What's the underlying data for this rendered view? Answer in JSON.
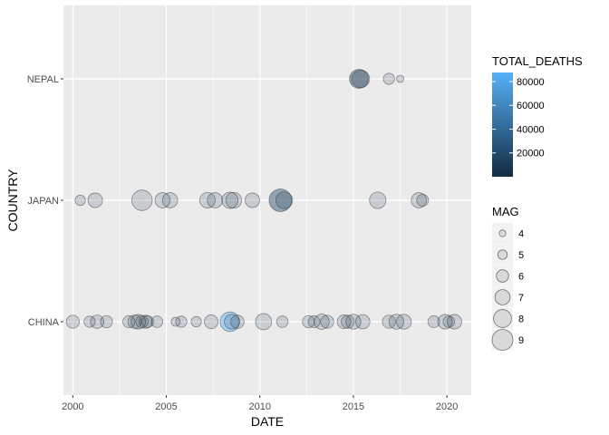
{
  "chart_data": {
    "type": "scatter",
    "xlabel": "DATE",
    "ylabel": "COUNTRY",
    "x_ticks": [
      "2000",
      "2005",
      "2010",
      "2015",
      "2020"
    ],
    "xlim": [
      1999.5,
      2021.3
    ],
    "categories": [
      "CHINA",
      "JAPAN",
      "NEPAL"
    ],
    "grid": true,
    "legend_position": "right",
    "colors": {
      "panel": "#ebebeb",
      "grid": "#ffffff",
      "point_fill": "#bfc5cc",
      "point_stroke": "#555555",
      "deaths_low": "#132b43",
      "deaths_high": "#56b1f7"
    },
    "legends": {
      "color": {
        "title": "TOTAL_DEATHS",
        "breaks": [
          20000,
          40000,
          60000,
          80000
        ],
        "labels": [
          "20000",
          "40000",
          "60000",
          "80000"
        ],
        "range": [
          0,
          87600
        ]
      },
      "size": {
        "title": "MAG",
        "breaks": [
          4,
          5,
          6,
          7,
          8,
          9
        ],
        "labels": [
          "4",
          "5",
          "6",
          "7",
          "8",
          "9"
        ]
      }
    },
    "series": [
      {
        "country": "NEPAL",
        "points": [
          {
            "x": 2015.3,
            "mag": 7.8,
            "deaths": 8000
          },
          {
            "x": 2015.4,
            "mag": 7.3,
            "deaths": 200
          },
          {
            "x": 2016.9,
            "mag": 5.3,
            "deaths": 0
          },
          {
            "x": 2017.5,
            "mag": 4.0,
            "deaths": 0
          }
        ]
      },
      {
        "country": "JAPAN",
        "points": [
          {
            "x": 2000.4,
            "mag": 5.0,
            "deaths": 0
          },
          {
            "x": 2001.2,
            "mag": 6.4,
            "deaths": 2
          },
          {
            "x": 2003.7,
            "mag": 8.3,
            "deaths": 0
          },
          {
            "x": 2004.8,
            "mag": 6.6,
            "deaths": 40
          },
          {
            "x": 2005.2,
            "mag": 6.6,
            "deaths": 1
          },
          {
            "x": 2007.2,
            "mag": 6.7,
            "deaths": 15
          },
          {
            "x": 2007.6,
            "mag": 6.6,
            "deaths": 11
          },
          {
            "x": 2008.4,
            "mag": 6.9,
            "deaths": 23
          },
          {
            "x": 2008.6,
            "mag": 6.8,
            "deaths": 1
          },
          {
            "x": 2009.6,
            "mag": 6.4,
            "deaths": 1
          },
          {
            "x": 2011.1,
            "mag": 9.0,
            "deaths": 18400
          },
          {
            "x": 2011.3,
            "mag": 7.1,
            "deaths": 4
          },
          {
            "x": 2016.3,
            "mag": 7.0,
            "deaths": 0
          },
          {
            "x": 2018.5,
            "mag": 6.6,
            "deaths": 0
          },
          {
            "x": 2018.7,
            "mag": 5.5,
            "deaths": 0
          }
        ]
      },
      {
        "country": "CHINA",
        "points": [
          {
            "x": 2000.0,
            "mag": 5.9,
            "deaths": 0
          },
          {
            "x": 2000.9,
            "mag": 5.3,
            "deaths": 0
          },
          {
            "x": 2001.3,
            "mag": 6.0,
            "deaths": 0
          },
          {
            "x": 2001.8,
            "mag": 5.6,
            "deaths": 0
          },
          {
            "x": 2003.0,
            "mag": 5.6,
            "deaths": 300
          },
          {
            "x": 2003.3,
            "mag": 6.0,
            "deaths": 200
          },
          {
            "x": 2003.5,
            "mag": 6.4,
            "deaths": 20
          },
          {
            "x": 2003.7,
            "mag": 5.7,
            "deaths": 500
          },
          {
            "x": 2003.9,
            "mag": 5.9,
            "deaths": 700
          },
          {
            "x": 2004.0,
            "mag": 5.5,
            "deaths": 200
          },
          {
            "x": 2004.5,
            "mag": 5.4,
            "deaths": 0
          },
          {
            "x": 2005.5,
            "mag": 4.6,
            "deaths": 0
          },
          {
            "x": 2005.8,
            "mag": 5.3,
            "deaths": 30
          },
          {
            "x": 2006.6,
            "mag": 5.0,
            "deaths": 50
          },
          {
            "x": 2007.4,
            "mag": 6.1,
            "deaths": 0
          },
          {
            "x": 2008.4,
            "mag": 8.0,
            "deaths": 87600
          },
          {
            "x": 2008.5,
            "mag": 6.5,
            "deaths": 1000
          },
          {
            "x": 2008.8,
            "mag": 6.0,
            "deaths": 700
          },
          {
            "x": 2010.2,
            "mag": 6.9,
            "deaths": 2700
          },
          {
            "x": 2011.2,
            "mag": 5.4,
            "deaths": 0
          },
          {
            "x": 2012.6,
            "mag": 5.6,
            "deaths": 800
          },
          {
            "x": 2012.9,
            "mag": 5.5,
            "deaths": 400
          },
          {
            "x": 2013.3,
            "mag": 6.6,
            "deaths": 300
          },
          {
            "x": 2013.6,
            "mag": 5.9,
            "deaths": 200
          },
          {
            "x": 2014.5,
            "mag": 6.1,
            "deaths": 800
          },
          {
            "x": 2014.7,
            "mag": 5.9,
            "deaths": 300
          },
          {
            "x": 2015.0,
            "mag": 6.5,
            "deaths": 600
          },
          {
            "x": 2015.5,
            "mag": 6.3,
            "deaths": 0
          },
          {
            "x": 2016.9,
            "mag": 5.9,
            "deaths": 1000
          },
          {
            "x": 2017.3,
            "mag": 6.5,
            "deaths": 500
          },
          {
            "x": 2017.7,
            "mag": 6.5,
            "deaths": 100
          },
          {
            "x": 2019.3,
            "mag": 5.5,
            "deaths": 10
          },
          {
            "x": 2019.9,
            "mag": 6.4,
            "deaths": 600
          },
          {
            "x": 2020.1,
            "mag": 5.4,
            "deaths": 200
          },
          {
            "x": 2020.4,
            "mag": 6.4,
            "deaths": 0
          }
        ]
      }
    ]
  }
}
